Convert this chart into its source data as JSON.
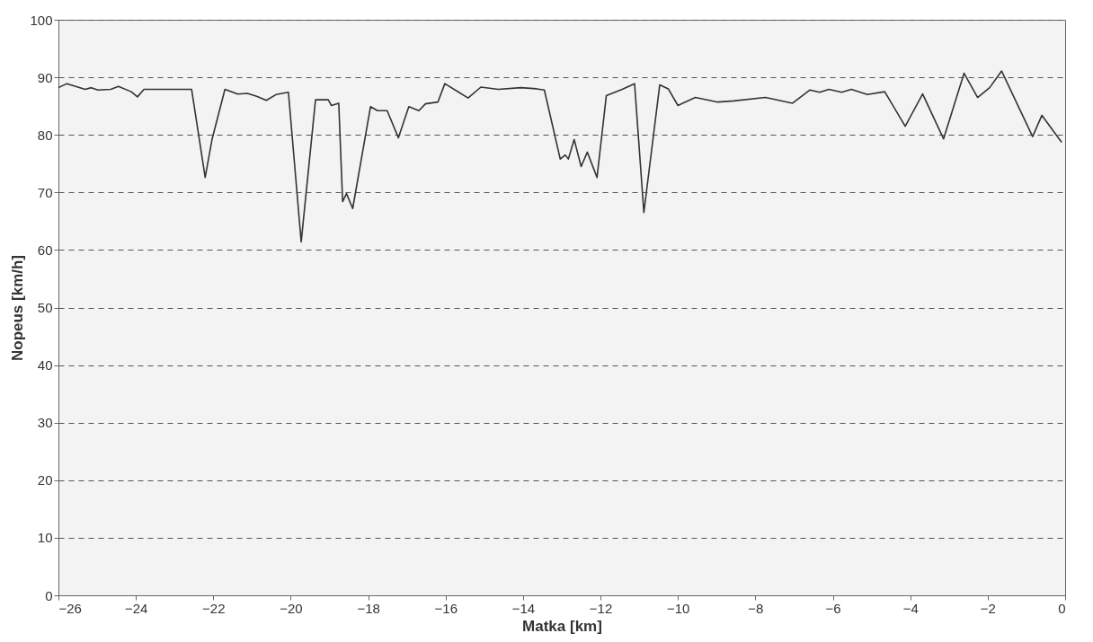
{
  "chart_data": {
    "type": "line",
    "xlabel": "Matka [km]",
    "ylabel": "Nopeus [km/h]",
    "xlim": [
      -26,
      0
    ],
    "xticks": [
      -26,
      -24,
      -22,
      -20,
      -18,
      -16,
      -14,
      -12,
      -10,
      -8,
      -6,
      -4,
      -2,
      0
    ],
    "ylim": [
      0,
      100
    ],
    "yticks": [
      0,
      10,
      20,
      30,
      40,
      50,
      60,
      70,
      80,
      90,
      100
    ],
    "grid": "y",
    "line_style": "solid",
    "series": [
      {
        "color": "#333333",
        "x": [
          -26,
          -25.78,
          -25.31,
          -25.15,
          -24.98,
          -24.65,
          -24.45,
          -24.12,
          -23.96,
          -23.79,
          -22.56,
          -22.21,
          -22.03,
          -21.7,
          -21.37,
          -21.12,
          -20.88,
          -20.63,
          -20.38,
          -20.06,
          -19.73,
          -19.36,
          -19.03,
          -18.95,
          -18.76,
          -18.66,
          -18.56,
          -18.4,
          -17.94,
          -17.76,
          -17.51,
          -17.22,
          -16.95,
          -16.69,
          -16.52,
          -16.2,
          -16.02,
          -15.42,
          -15.09,
          -14.64,
          -14.06,
          -13.65,
          -13.45,
          -13.04,
          -12.91,
          -12.83,
          -12.68,
          -12.5,
          -12.34,
          -12.09,
          -11.85,
          -11.44,
          -11.12,
          -10.88,
          -10.47,
          -10.25,
          -10.0,
          -9.55,
          -8.97,
          -8.56,
          -7.74,
          -7.04,
          -6.59,
          -6.34,
          -6.1,
          -5.77,
          -5.52,
          -5.11,
          -4.66,
          -4.13,
          -3.68,
          -3.14,
          -2.61,
          -2.26,
          -1.95,
          -1.64,
          -0.84,
          -0.6,
          -0.09
        ],
        "values": [
          88.2,
          88.9,
          87.9,
          88.2,
          87.8,
          87.9,
          88.4,
          87.5,
          86.6,
          87.9,
          87.9,
          72.6,
          79.3,
          87.9,
          87.1,
          87.2,
          86.7,
          86.0,
          87.0,
          87.4,
          61.4,
          86.1,
          86.1,
          85.1,
          85.5,
          68.4,
          69.8,
          67.2,
          84.9,
          84.2,
          84.2,
          79.5,
          84.9,
          84.2,
          85.4,
          85.7,
          88.9,
          86.4,
          88.3,
          87.9,
          88.2,
          88.0,
          87.8,
          75.8,
          76.5,
          75.8,
          79.2,
          74.5,
          77.0,
          72.6,
          86.8,
          87.9,
          88.9,
          66.5,
          88.7,
          88.0,
          85.1,
          86.5,
          85.7,
          85.9,
          86.5,
          85.5,
          87.8,
          87.4,
          87.9,
          87.4,
          87.9,
          87.0,
          87.5,
          81.5,
          87.1,
          79.3,
          90.7,
          86.5,
          88.2,
          91.1,
          79.7,
          83.4,
          78.7
        ]
      }
    ]
  }
}
